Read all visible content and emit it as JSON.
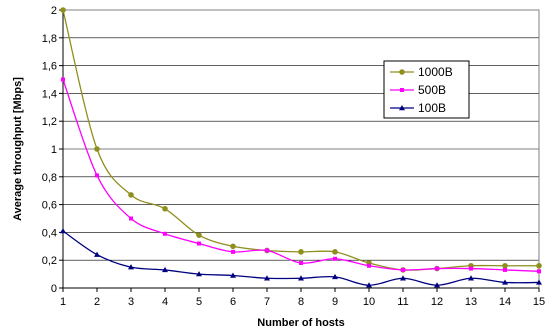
{
  "chart_data": {
    "type": "line",
    "title": "",
    "xlabel": "Number of hosts",
    "ylabel": "Average throughput [Mbps]",
    "x": [
      1,
      2,
      3,
      4,
      5,
      6,
      7,
      8,
      9,
      10,
      11,
      12,
      13,
      14,
      15
    ],
    "xlim": [
      1,
      15
    ],
    "ylim": [
      0,
      2
    ],
    "yticks": [
      "0",
      "0,2",
      "0,4",
      "0,6",
      "0,8",
      "1",
      "1,2",
      "1,4",
      "1,6",
      "1,8",
      "2"
    ],
    "xticks": [
      "1",
      "2",
      "3",
      "4",
      "5",
      "6",
      "7",
      "8",
      "9",
      "10",
      "11",
      "12",
      "13",
      "14",
      "15"
    ],
    "grid": "horizontal",
    "legend_position": "right",
    "series": [
      {
        "name": "1000B",
        "color": "#8f8f1e",
        "marker": "circle",
        "values": [
          2.0,
          1.0,
          0.67,
          0.57,
          0.38,
          0.3,
          0.27,
          0.26,
          0.26,
          0.18,
          0.13,
          0.14,
          0.16,
          0.16,
          0.16
        ]
      },
      {
        "name": "500B",
        "color": "#ff00ff",
        "marker": "square",
        "values": [
          1.5,
          0.81,
          0.5,
          0.39,
          0.32,
          0.26,
          0.27,
          0.18,
          0.21,
          0.16,
          0.13,
          0.14,
          0.14,
          0.13,
          0.12
        ]
      },
      {
        "name": "100B",
        "color": "#000080",
        "marker": "triangle",
        "values": [
          0.41,
          0.24,
          0.15,
          0.13,
          0.1,
          0.09,
          0.07,
          0.07,
          0.08,
          0.02,
          0.07,
          0.02,
          0.07,
          0.04,
          0.04
        ]
      }
    ]
  }
}
